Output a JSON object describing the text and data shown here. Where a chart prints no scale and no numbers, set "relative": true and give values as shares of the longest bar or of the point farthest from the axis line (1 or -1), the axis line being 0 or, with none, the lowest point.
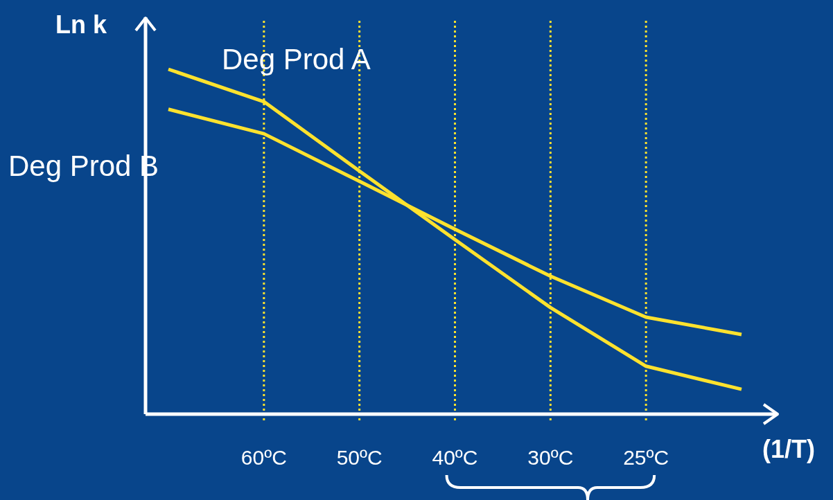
{
  "chart_data": {
    "type": "line",
    "relative": true,
    "xlabel": "(1/T)",
    "ylabel": "Ln k",
    "categories": [
      null,
      "60ºC",
      "50ºC",
      "40ºC",
      "30ºC",
      "25ºC",
      null
    ],
    "series": [
      {
        "name": "Deg Prod A",
        "color": "#ffe22e",
        "values": [
          1,
          0.906,
          0.705,
          0.506,
          0.309,
          0.139,
          0.072
        ]
      },
      {
        "name": "Deg Prod B",
        "color": "#ffe22e",
        "values": [
          0.884,
          0.813,
          0.675,
          0.536,
          0.4,
          0.281,
          0.231
        ]
      }
    ],
    "grid": "x",
    "marker": "none",
    "line_style": "solid"
  }
}
